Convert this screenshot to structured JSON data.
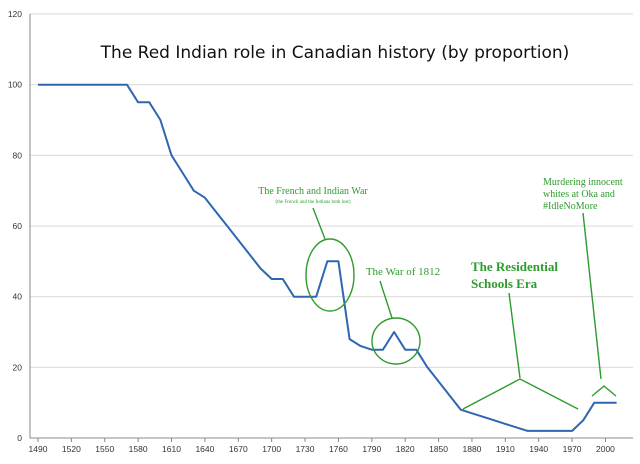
{
  "chart_data": {
    "type": "line",
    "title": "The Red Indian role in Canadian history (by proportion)",
    "xlabel": "",
    "ylabel": "",
    "grid": true,
    "xlim": [
      1490,
      2010
    ],
    "ylim": [
      0,
      120
    ],
    "x_ticks": [
      "1490",
      "1520",
      "1550",
      "1580",
      "1610",
      "1640",
      "1670",
      "1700",
      "1730",
      "1760",
      "1790",
      "1820",
      "1850",
      "1880",
      "1910",
      "1940",
      "1970",
      "2000"
    ],
    "y_ticks": [
      0,
      20,
      40,
      60,
      80,
      100,
      120
    ],
    "series": [
      {
        "name": "Red Indian role",
        "color": "#2e67b1",
        "x": [
          1490,
          1570,
          1580,
          1590,
          1600,
          1610,
          1620,
          1630,
          1640,
          1650,
          1660,
          1670,
          1680,
          1690,
          1700,
          1710,
          1720,
          1730,
          1740,
          1750,
          1760,
          1770,
          1780,
          1790,
          1800,
          1810,
          1820,
          1830,
          1840,
          1850,
          1860,
          1870,
          1880,
          1890,
          1900,
          1910,
          1920,
          1930,
          1940,
          1950,
          1960,
          1970,
          1980,
          1990,
          2000,
          2010
        ],
        "y": [
          100,
          100,
          95,
          95,
          90,
          80,
          75,
          70,
          68,
          64,
          60,
          56,
          52,
          48,
          45,
          45,
          40,
          40,
          40,
          50,
          50,
          28,
          26,
          25,
          25,
          30,
          25,
          25,
          20,
          16,
          12,
          8,
          7,
          6,
          5,
          4,
          3,
          2,
          2,
          2,
          2,
          2,
          5,
          10,
          10,
          10
        ]
      }
    ],
    "annotations": [
      {
        "id": "french-indian-war",
        "text": "The French and Indian War",
        "subtext": "(the French and the Indians both lost)"
      },
      {
        "id": "war-1812",
        "text": "The War of 1812"
      },
      {
        "id": "residential-schools-1",
        "text": "The Residential"
      },
      {
        "id": "residential-schools-2",
        "text": "Schools Era"
      },
      {
        "id": "oka-1",
        "text": "Murdering innocent"
      },
      {
        "id": "oka-2",
        "text": "whites at Oka and"
      },
      {
        "id": "oka-3",
        "text": "#IdleNoMore"
      }
    ],
    "annotation_color": "#2e9b2e",
    "grid_color": "#d9d9d9"
  }
}
